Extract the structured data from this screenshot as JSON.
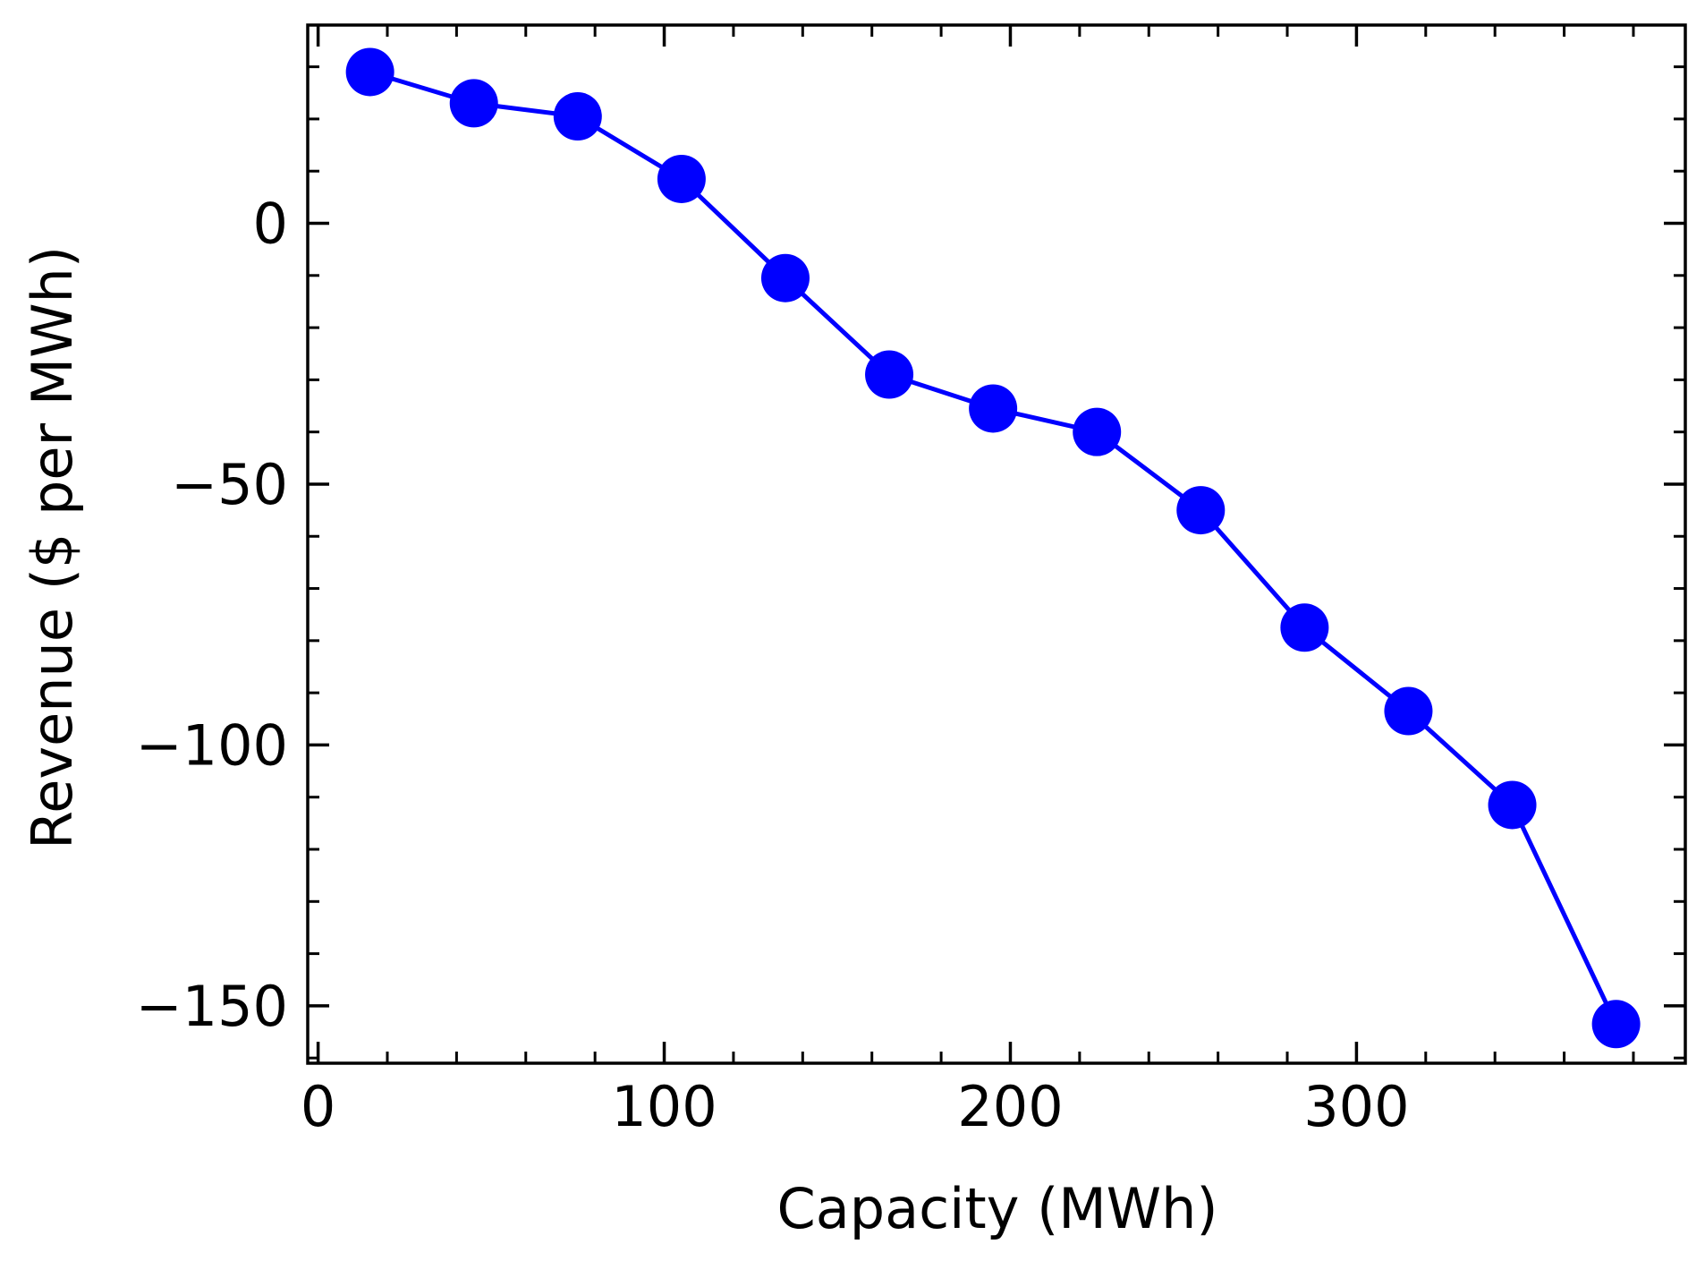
{
  "chart_data": {
    "type": "line",
    "title": "",
    "xlabel": "Capacity (MWh)",
    "ylabel": "Revenue ($ per MWh)",
    "xlim": [
      -3,
      395
    ],
    "ylim": [
      -161,
      38
    ],
    "x_ticks": [
      0,
      100,
      200,
      300
    ],
    "y_ticks": [
      0,
      -50,
      -100,
      -150
    ],
    "x_tick_labels": [
      "0",
      "100",
      "200",
      "300"
    ],
    "y_tick_labels": [
      "0",
      "−50",
      "−100",
      "−150"
    ],
    "x_minor_step": 20,
    "y_minor_step": 10,
    "grid": false,
    "legend": "none",
    "series": [
      {
        "color": "#0000ff",
        "marker": "circle",
        "x": [
          15,
          45,
          75,
          105,
          135,
          165,
          195,
          225,
          255,
          285,
          315,
          345,
          375
        ],
        "y": [
          29,
          23,
          20.5,
          8.5,
          -10.5,
          -29,
          -35.5,
          -40,
          -55,
          -77.5,
          -93.5,
          -111.5,
          -153.5
        ]
      }
    ]
  }
}
